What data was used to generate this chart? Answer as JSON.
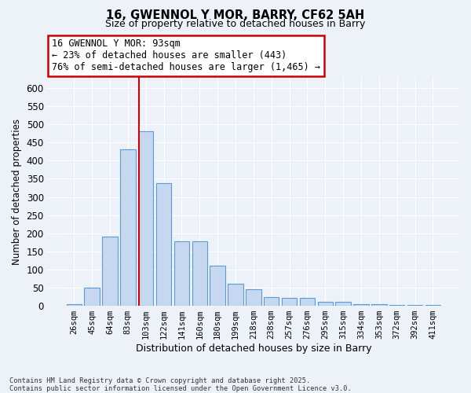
{
  "title": "16, GWENNOL Y MOR, BARRY, CF62 5AH",
  "subtitle": "Size of property relative to detached houses in Barry",
  "xlabel": "Distribution of detached houses by size in Barry",
  "ylabel": "Number of detached properties",
  "categories": [
    "26sqm",
    "45sqm",
    "64sqm",
    "83sqm",
    "103sqm",
    "122sqm",
    "141sqm",
    "160sqm",
    "180sqm",
    "199sqm",
    "218sqm",
    "238sqm",
    "257sqm",
    "276sqm",
    "295sqm",
    "315sqm",
    "334sqm",
    "353sqm",
    "372sqm",
    "392sqm",
    "411sqm"
  ],
  "values": [
    5,
    50,
    190,
    432,
    482,
    338,
    178,
    178,
    110,
    60,
    45,
    25,
    22,
    22,
    10,
    10,
    5,
    5,
    3,
    3,
    3
  ],
  "bar_color": "#c5d8f0",
  "bar_edge_color": "#5b9bd5",
  "background_color": "#edf2f9",
  "grid_color": "#ffffff",
  "vline_index": 3.6,
  "vline_color": "#cc0000",
  "annotation_text": "16 GWENNOL Y MOR: 93sqm\n← 23% of detached houses are smaller (443)\n76% of semi-detached houses are larger (1,465) →",
  "annotation_box_color": "#ffffff",
  "annotation_box_edge": "#cc0000",
  "footer_text": "Contains HM Land Registry data © Crown copyright and database right 2025.\nContains public sector information licensed under the Open Government Licence v3.0.",
  "ylim": [
    0,
    630
  ],
  "yticks": [
    0,
    50,
    100,
    150,
    200,
    250,
    300,
    350,
    400,
    450,
    500,
    550,
    600
  ]
}
